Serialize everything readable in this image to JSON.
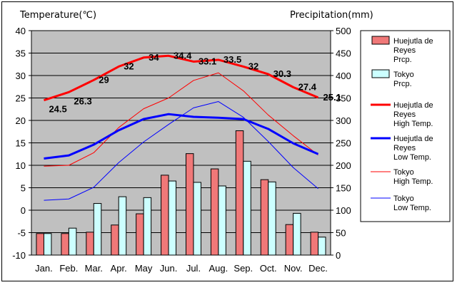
{
  "chart_data": {
    "type": "bar+line",
    "left_axis_title": "Temperature(℃)",
    "right_axis_title": "Precipitation(mm)",
    "categories": [
      "Jan.",
      "Feb.",
      "Mar.",
      "Apr.",
      "May",
      "Jun.",
      "Jul.",
      "Aug.",
      "Sep.",
      "Oct.",
      "Nov.",
      "Dec."
    ],
    "y_left": {
      "min": -10,
      "max": 40,
      "ticks": [
        "40",
        "35",
        "30",
        "25",
        "20",
        "15",
        "10",
        "5",
        "0",
        "-5",
        "-10"
      ]
    },
    "y_right": {
      "min": 0,
      "max": 500,
      "ticks": [
        "500",
        "450",
        "400",
        "350",
        "300",
        "250",
        "200",
        "150",
        "100",
        "50",
        "0"
      ]
    },
    "grid": true,
    "bars": [
      {
        "name": "Huejutla de Reyes Prcp.",
        "legend_lines": [
          "Huejutla de",
          "Reyes",
          "Prcp."
        ],
        "color": "#f07878",
        "values": [
          48,
          48,
          51,
          67,
          92,
          178,
          226,
          192,
          277,
          168,
          68,
          51
        ]
      },
      {
        "name": "Tokyo Prcp.",
        "legend_lines": [
          "Tokyo",
          "Prcp."
        ],
        "color": "#ccffff",
        "values": [
          48,
          60,
          115,
          130,
          128,
          165,
          162,
          154,
          209,
          163,
          93,
          40
        ]
      }
    ],
    "lines": [
      {
        "name": "Huejutla de Reyes High Temp.",
        "legend_lines": [
          "Huejutla de",
          "Reyes",
          "High Temp."
        ],
        "color": "#ff0000",
        "width": 3,
        "values": [
          24.5,
          26.3,
          29,
          32,
          34,
          34.4,
          33.1,
          33.5,
          32,
          30.3,
          27.4,
          25.1
        ],
        "labels": [
          "24.5",
          "26.3",
          "29",
          "32",
          "34",
          "34.4",
          "33.1",
          "33.5",
          "32",
          "30.3",
          "27.4",
          "25.1"
        ]
      },
      {
        "name": "Huejutla de Reyes Low Temp.",
        "legend_lines": [
          "Huejutla de",
          "Reyes",
          "Low Temp."
        ],
        "color": "#0000ff",
        "width": 3,
        "values": [
          11.5,
          12.2,
          14.6,
          17.8,
          20.3,
          21.4,
          20.8,
          20.6,
          20.3,
          18.1,
          14.9,
          12.5
        ]
      },
      {
        "name": "Tokyo High Temp.",
        "legend_lines": [
          "Tokyo",
          "High Temp."
        ],
        "color": "#ff0000",
        "width": 1,
        "values": [
          9.8,
          10,
          12.8,
          18.4,
          22.6,
          25,
          28.9,
          30.6,
          26.6,
          21.2,
          16.6,
          12.3
        ]
      },
      {
        "name": "Tokyo Low Temp.",
        "legend_lines": [
          "Tokyo",
          "Low Temp."
        ],
        "color": "#0000ff",
        "width": 1,
        "values": [
          2.2,
          2.5,
          5.1,
          10.6,
          15.2,
          19.1,
          22.8,
          24.2,
          20.7,
          15.3,
          9.5,
          4.8
        ]
      }
    ]
  }
}
